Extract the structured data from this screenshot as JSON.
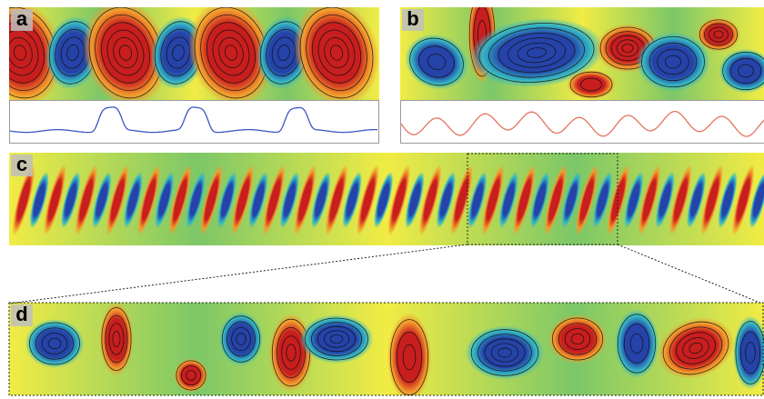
{
  "figure": {
    "panels": [
      {
        "id": "a",
        "label": "a"
      },
      {
        "id": "b",
        "label": "b"
      },
      {
        "id": "c",
        "label": "c"
      },
      {
        "id": "d",
        "label": "d"
      }
    ]
  },
  "colors": {
    "red": "#c81e1e",
    "orange": "#f39a2c",
    "yellow": "#f1ec45",
    "green": "#7cc768",
    "cyan": "#33b7c4",
    "blue": "#2543a8",
    "trace_a": "#3d55c4",
    "trace_b": "#e4735e",
    "streamline": "#111111"
  }
}
